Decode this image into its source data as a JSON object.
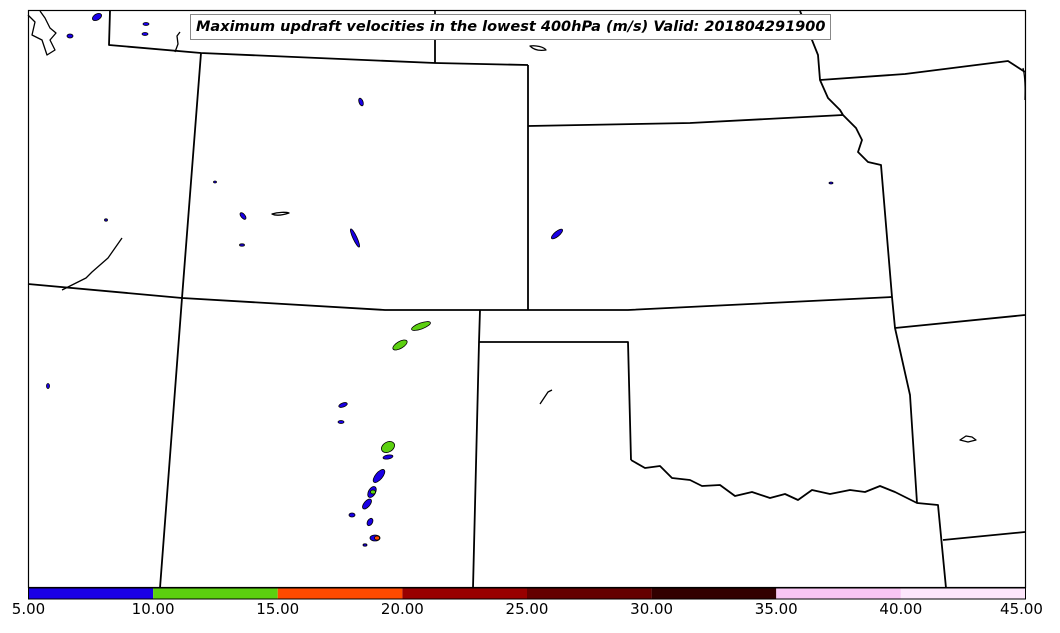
{
  "title": "Maximum updraft velocities in the lowest 400hPa (m/s) Valid: 201804291900",
  "colorbar": {
    "ticks": [
      "5.00",
      "10.00",
      "15.00",
      "20.00",
      "25.00",
      "30.00",
      "35.00",
      "40.00",
      "45.00"
    ],
    "bins": [
      {
        "from": 5,
        "to": 10,
        "color": "#1a00e6"
      },
      {
        "from": 10,
        "to": 15,
        "color": "#5cd010"
      },
      {
        "from": 15,
        "to": 20,
        "color": "#ff4a00"
      },
      {
        "from": 20,
        "to": 25,
        "color": "#990000"
      },
      {
        "from": 25,
        "to": 30,
        "color": "#640000"
      },
      {
        "from": 30,
        "to": 35,
        "color": "#320000"
      },
      {
        "from": 35,
        "to": 40,
        "color": "#f9c6f4"
      },
      {
        "from": 40,
        "to": 45,
        "color": "#fde6fb"
      }
    ]
  }
}
